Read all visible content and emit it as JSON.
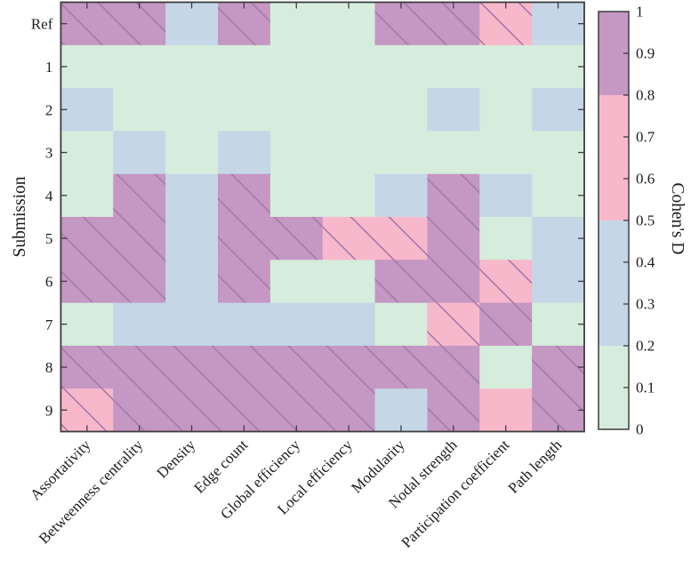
{
  "figure": {
    "background": "#ffffff",
    "axis_color": "#3d3d3d"
  },
  "chart_data": {
    "type": "heatmap",
    "title": "",
    "xlabel": "",
    "ylabel": "Submission",
    "colorbar_label": "Cohen's D",
    "columns": [
      "Assortativity",
      "Betweenness centrality",
      "Density",
      "Edge count",
      "Global efficiency",
      "Local efficiency",
      "Modularity",
      "Nodal strength",
      "Participation coefficient",
      "Path length"
    ],
    "rows": [
      "Ref",
      "1",
      "2",
      "3",
      "4",
      "5",
      "6",
      "7",
      "8",
      "9"
    ],
    "legend": {
      "note": "cell codes map to Cohen's D bands",
      "bands": [
        {
          "code": "G",
          "range": [
            0,
            0.2
          ],
          "color": "#d6ecdc"
        },
        {
          "code": "B",
          "range": [
            0.2,
            0.5
          ],
          "color": "#c5d7e6"
        },
        {
          "code": "P",
          "range": [
            0.5,
            0.8
          ],
          "color": "#f8b8cb"
        },
        {
          "code": "M",
          "range": [
            0.8,
            1.0
          ],
          "color": "#c597c3"
        }
      ],
      "hatch_color": "#a379a8"
    },
    "cells": [
      [
        "M",
        "M",
        "B",
        "M",
        "G",
        "G",
        "M",
        "M",
        "P",
        "B"
      ],
      [
        "G",
        "G",
        "G",
        "G",
        "G",
        "G",
        "G",
        "G",
        "G",
        "G"
      ],
      [
        "B",
        "G",
        "G",
        "G",
        "G",
        "G",
        "G",
        "B",
        "G",
        "B"
      ],
      [
        "G",
        "B",
        "G",
        "B",
        "G",
        "G",
        "G",
        "G",
        "G",
        "G"
      ],
      [
        "G",
        "M",
        "B",
        "M",
        "G",
        "G",
        "B",
        "M",
        "B",
        "G"
      ],
      [
        "M",
        "M",
        "B",
        "M",
        "M",
        "P",
        "P",
        "M",
        "G",
        "B"
      ],
      [
        "M",
        "M",
        "B",
        "M",
        "G",
        "G",
        "M",
        "M",
        "P",
        "B"
      ],
      [
        "G",
        "B",
        "B",
        "B",
        "B",
        "B",
        "G",
        "P",
        "M",
        "G"
      ],
      [
        "M",
        "M",
        "M",
        "M",
        "M",
        "M",
        "M",
        "M",
        "G",
        "M"
      ],
      [
        "P",
        "M",
        "M",
        "M",
        "M",
        "M",
        "B",
        "M",
        "P",
        "M"
      ]
    ],
    "hatched": [
      [
        1,
        1,
        0,
        1,
        0,
        0,
        1,
        1,
        1,
        0
      ],
      [
        0,
        0,
        0,
        0,
        0,
        0,
        0,
        0,
        0,
        0
      ],
      [
        0,
        0,
        0,
        0,
        0,
        0,
        0,
        0,
        0,
        0
      ],
      [
        0,
        0,
        0,
        0,
        0,
        0,
        0,
        0,
        0,
        0
      ],
      [
        0,
        1,
        0,
        1,
        0,
        0,
        0,
        1,
        0,
        0
      ],
      [
        1,
        1,
        0,
        1,
        1,
        1,
        1,
        1,
        0,
        0
      ],
      [
        1,
        1,
        0,
        1,
        0,
        0,
        1,
        1,
        1,
        0
      ],
      [
        0,
        0,
        0,
        0,
        0,
        0,
        0,
        1,
        1,
        0
      ],
      [
        1,
        1,
        1,
        1,
        1,
        1,
        1,
        1,
        0,
        1
      ],
      [
        1,
        1,
        1,
        1,
        1,
        1,
        0,
        1,
        0,
        1
      ]
    ],
    "colorbar_ticks": [
      "1",
      "0.9",
      "0.8",
      "0.7",
      "0.6",
      "0.5",
      "0.4",
      "0.3",
      "0.2",
      "0.1",
      "0"
    ],
    "colorbar_range": [
      0,
      1
    ],
    "grid": false,
    "legend_position": "right-colorbar"
  }
}
